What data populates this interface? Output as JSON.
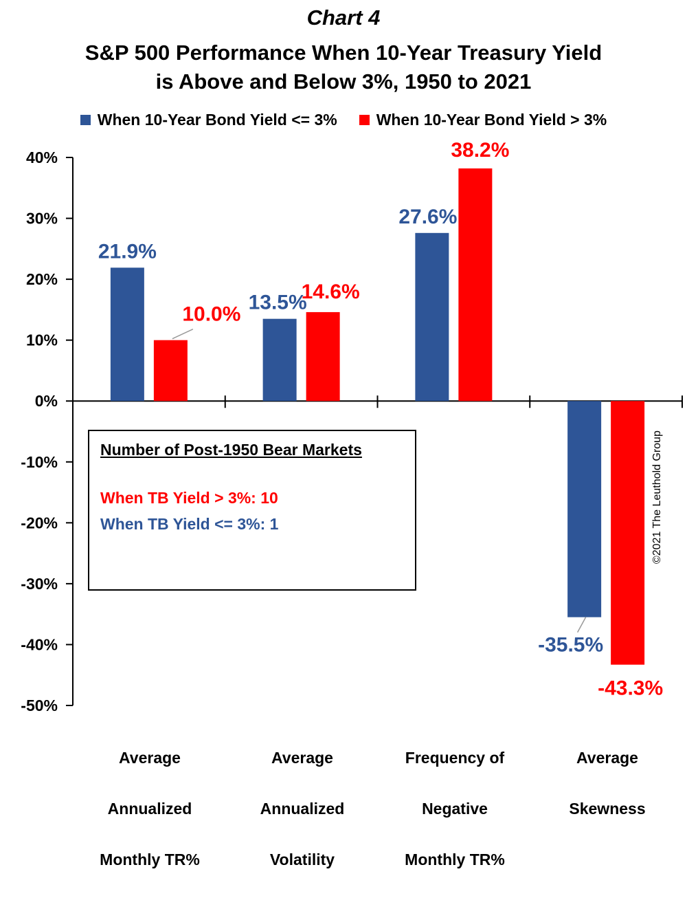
{
  "header": {
    "kicker": "Chart 4",
    "title_line1": "S&P 500 Performance When 10-Year Treasury Yield",
    "title_line2": "is Above and Below 3%,  1950 to 2021"
  },
  "colors": {
    "blue": "#2e5597",
    "red": "#ff0000",
    "axis": "#000000"
  },
  "chart_data": {
    "type": "bar",
    "categories": [
      "Average Annualized Monthly TR%",
      "Average Annualized Volatility",
      "Frequency of Negative Monthly TR%",
      "Average Skewness"
    ],
    "series": [
      {
        "name": "When 10-Year Bond Yield <= 3%",
        "color": "#2e5597",
        "values": [
          21.9,
          13.5,
          27.6,
          -35.5
        ],
        "labels": [
          "21.9%",
          "13.5%",
          "27.6%",
          "-35.5%"
        ]
      },
      {
        "name": "When 10-Year Bond Yield > 3%",
        "color": "#ff0000",
        "values": [
          10.0,
          14.6,
          38.2,
          -43.3
        ],
        "labels": [
          "10.0%",
          "14.6%",
          "38.2%",
          "-43.3%"
        ]
      }
    ],
    "ylim": [
      -50,
      40
    ],
    "yticks": [
      40,
      30,
      20,
      10,
      0,
      -10,
      -20,
      -30,
      -40,
      -50
    ],
    "ytick_labels": [
      "40%",
      "30%",
      "20%",
      "10%",
      "0%",
      "-10%",
      "-20%",
      "-30%",
      "-40%",
      "-50%"
    ],
    "category_lines": [
      [
        "Average",
        "Annualized",
        "Monthly TR%"
      ],
      [
        "Average",
        "Annualized",
        "Volatility"
      ],
      [
        "Frequency of",
        "Negative",
        "Monthly TR%"
      ],
      [
        "Average",
        "Skewness"
      ]
    ],
    "grid": false,
    "legend_position": "top"
  },
  "annotation_box": {
    "heading": "Number of Post-1950 Bear Markets",
    "line_red": "When TB Yield > 3%: 10",
    "line_blue": "When TB Yield <= 3%: 1"
  },
  "copyright": "©2021 The Leuthold Group"
}
